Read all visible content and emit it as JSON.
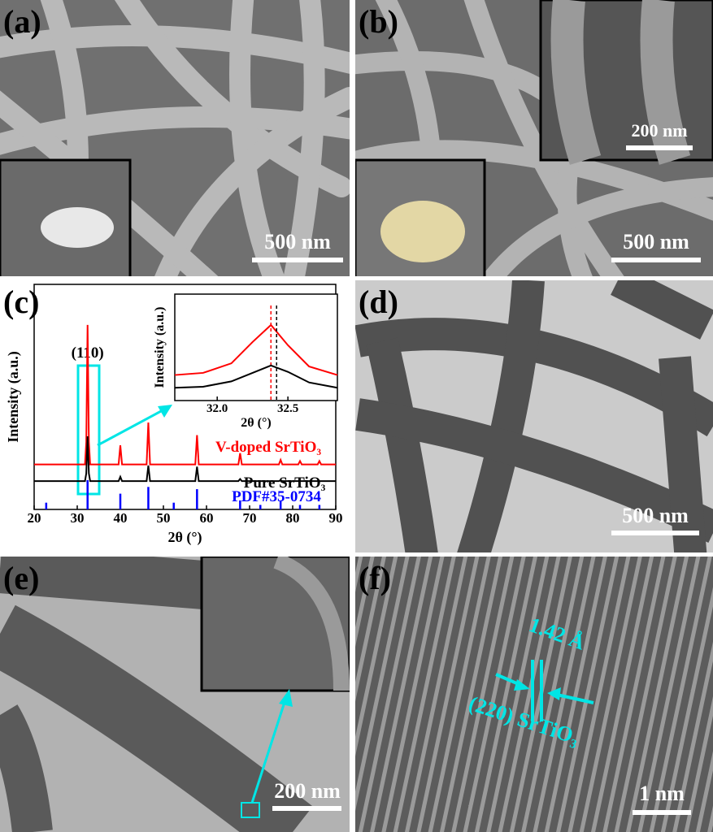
{
  "panels": [
    {
      "label": "(a)",
      "scale_bar": "500 nm"
    },
    {
      "label": "(b)",
      "scale_bar": "500 nm",
      "inset_scale_bar": "200 nm"
    },
    {
      "label": "(c)"
    },
    {
      "label": "(d)",
      "scale_bar": "500 nm"
    },
    {
      "label": "(e)",
      "scale_bar": "200 nm"
    },
    {
      "label": "(f)",
      "scale_bar": "1 nm",
      "annotations": [
        "1.42 Å",
        "(220) SrTiO₃"
      ]
    }
  ],
  "chart_data": [
    {
      "type": "line",
      "x_label": "2θ (°)",
      "y_label": "Intensity (a.u.)",
      "annotation": "(110)",
      "xlim": [
        20,
        90
      ],
      "xticks": [
        20,
        30,
        40,
        50,
        60,
        70,
        80,
        90
      ],
      "ylim": [
        0,
        100
      ],
      "x": [
        20,
        31.8,
        32.1,
        32.4,
        32.7,
        33,
        39.6,
        40,
        40.4,
        46.1,
        46.5,
        46.9,
        57.4,
        57.8,
        58.2,
        67.4,
        67.8,
        68.2,
        76.8,
        77.2,
        77.6,
        81.3,
        81.7,
        82.1,
        85.8,
        86.2,
        86.6,
        90
      ],
      "series": [
        {
          "name": "V-doped SrTiO₃",
          "color": "#ff0000",
          "values": [
            20,
            20,
            30,
            82,
            30,
            20,
            20,
            28.5,
            20,
            20,
            38.6,
            20,
            20,
            33,
            20,
            20,
            25,
            20,
            20,
            22,
            20,
            20,
            21.5,
            20,
            20,
            21.5,
            20,
            20
          ]
        },
        {
          "name": "Pure SrTiO₃",
          "color": "#000000",
          "values": [
            12.6,
            12.6,
            16,
            32.5,
            16,
            12.6,
            12.6,
            14.5,
            12.6,
            12.6,
            19.5,
            12.6,
            12.6,
            19,
            12.6,
            12.6,
            13.5,
            12.6,
            12.6,
            13,
            12.6,
            12.6,
            12.6,
            12.6,
            12.6,
            12.6,
            12.6,
            12.6
          ]
        },
        {
          "name": "PDF#35-0734",
          "color": "#0000ff",
          "style": "stick",
          "x": [
            22.8,
            32.4,
            40,
            46.5,
            52.4,
            57.8,
            67.8,
            72.5,
            77.2,
            81.7,
            86.2
          ],
          "values": [
            3,
            13,
            7,
            10,
            3,
            9,
            4,
            2,
            4,
            2,
            2
          ]
        }
      ]
    },
    {
      "type": "line",
      "x_label": "2θ (°)",
      "y_label": "Intensity (a.u.)",
      "xlim": [
        31.7,
        32.85
      ],
      "xticks": [
        {
          "value": 32,
          "label": "32.0"
        },
        32.5
      ],
      "ylim": [
        0,
        100
      ],
      "x": [
        31.7,
        31.9,
        32.1,
        32.25,
        32.38,
        32.5,
        32.65,
        32.85
      ],
      "series": [
        {
          "color": "#ff0000",
          "values": [
            24,
            26,
            35,
            55,
            71,
            52,
            32,
            24
          ],
          "peak": 32.38
        },
        {
          "color": "#000000",
          "values": [
            12,
            13,
            18,
            26,
            33,
            27,
            17,
            12
          ],
          "peak": 32.42
        }
      ]
    }
  ]
}
